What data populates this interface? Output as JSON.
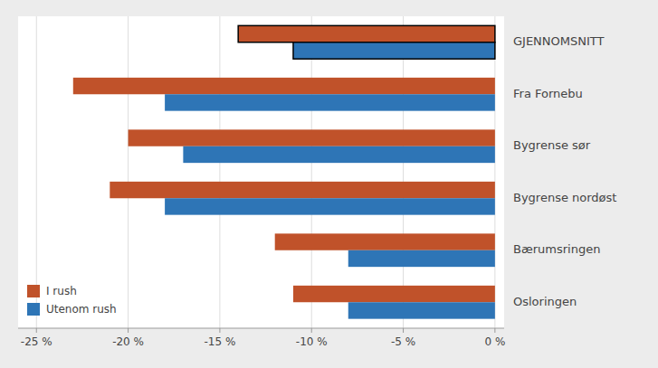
{
  "chart_data": {
    "type": "bar",
    "orientation": "horizontal",
    "categories": [
      "GJENNOMSNITT",
      "Fra Fornebu",
      "Bygrense sør",
      "Bygrense nordøst",
      "Bærumsringen",
      "Osloringen"
    ],
    "series": [
      {
        "name": "I rush",
        "color": "#C0522A",
        "values": [
          -14,
          -23,
          -20,
          -21,
          -12,
          -11
        ]
      },
      {
        "name": "Utenom rush",
        "color": "#2E75B6",
        "values": [
          -11,
          -18,
          -17,
          -18,
          -8,
          -8
        ]
      }
    ],
    "xlim": [
      -26,
      0.5
    ],
    "xticks": [
      {
        "value": -25,
        "label": "-25 %"
      },
      {
        "value": -20,
        "label": "-20 %"
      },
      {
        "value": -15,
        "label": "-15 %"
      },
      {
        "value": -10,
        "label": "-10 %"
      },
      {
        "value": -5,
        "label": "-5 %"
      },
      {
        "value": 0,
        "label": "0 %"
      }
    ],
    "grid": true,
    "legend": "lower left"
  }
}
